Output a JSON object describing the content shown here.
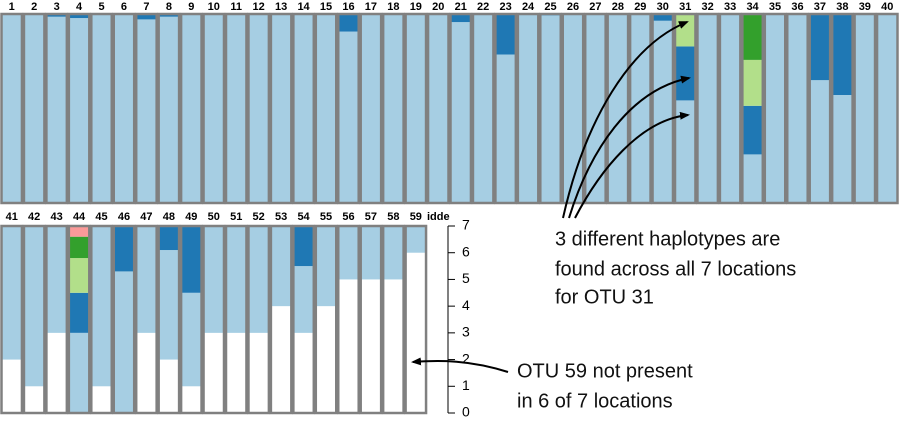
{
  "chart_data": {
    "type": "stacked-panels",
    "categories": [
      "1",
      "2",
      "3",
      "4",
      "5",
      "6",
      "7",
      "8",
      "9",
      "10",
      "11",
      "12",
      "13",
      "14",
      "15",
      "16",
      "17",
      "18",
      "19",
      "20",
      "21",
      "22",
      "23",
      "24",
      "25",
      "26",
      "27",
      "28",
      "29",
      "30",
      "31",
      "32",
      "33",
      "34",
      "35",
      "36",
      "37",
      "38",
      "39",
      "40",
      "41",
      "42",
      "43",
      "44",
      "45",
      "46",
      "47",
      "48",
      "49",
      "50",
      "51",
      "52",
      "53",
      "54",
      "55",
      "56",
      "57",
      "58",
      "59",
      "idde"
    ],
    "series": [
      {
        "color": "#ffffff",
        "values": [
          0,
          0,
          0,
          0,
          0,
          0,
          0,
          0,
          0,
          0,
          0,
          0,
          0,
          0,
          0,
          0,
          0,
          0,
          0,
          0,
          0,
          0,
          0,
          0,
          0,
          0,
          0,
          0,
          0,
          0,
          0,
          0,
          0,
          0,
          0,
          0,
          0,
          0,
          0,
          0,
          2,
          1,
          3,
          0,
          1,
          0,
          3,
          2,
          1,
          3,
          3,
          3,
          4,
          3,
          4,
          5,
          5,
          5,
          6,
          null
        ]
      },
      {
        "color": "#a6cee3",
        "values": [
          7,
          7,
          6.9,
          6.85,
          7,
          7,
          6.8,
          6.9,
          7,
          7,
          7,
          7,
          7,
          7,
          7,
          6.35,
          7,
          7,
          7,
          7,
          6.7,
          7,
          5.5,
          7,
          6.95,
          7,
          7,
          7,
          7,
          6.75,
          3.8,
          7,
          7,
          1.8,
          7,
          7,
          4.55,
          4,
          7,
          7,
          5,
          6,
          4,
          3,
          6,
          5.3,
          4,
          4.1,
          3.5,
          4,
          4,
          4,
          3,
          2.5,
          3,
          2,
          2,
          2,
          1,
          null
        ]
      },
      {
        "color": "#1f78b4",
        "values": [
          0,
          0,
          0.1,
          0.15,
          0,
          0,
          0.2,
          0.1,
          0,
          0,
          0,
          0,
          0,
          0,
          0,
          0.65,
          0,
          0,
          0,
          0,
          0.3,
          0,
          1.5,
          0,
          0.05,
          0,
          0,
          0,
          0,
          0.25,
          2.0,
          0,
          0,
          1.8,
          0,
          0,
          2.45,
          3,
          0,
          0,
          0,
          0,
          0,
          1.5,
          0,
          1.7,
          0,
          0.9,
          2.5,
          0,
          0,
          0,
          0,
          1.5,
          0,
          0,
          0,
          0,
          0,
          null
        ]
      },
      {
        "color": "#b2df8a",
        "values": [
          0,
          0,
          0,
          0,
          0,
          0,
          0,
          0,
          0,
          0,
          0,
          0,
          0,
          0,
          0,
          0,
          0,
          0,
          0,
          0,
          0,
          0,
          0,
          0,
          0,
          0,
          0,
          0,
          0,
          0,
          1.2,
          0,
          0,
          1.7,
          0,
          0,
          0,
          0,
          0,
          0,
          0,
          0,
          0,
          1.3,
          0,
          0,
          0,
          0,
          0,
          0,
          0,
          0,
          0,
          0,
          0,
          0,
          0,
          0,
          0,
          null
        ]
      },
      {
        "color": "#33a02c",
        "values": [
          0,
          0,
          0,
          0,
          0,
          0,
          0,
          0,
          0,
          0,
          0,
          0,
          0,
          0,
          0,
          0,
          0,
          0,
          0,
          0,
          0,
          0,
          0,
          0,
          0,
          0,
          0,
          0,
          0,
          0,
          0,
          0,
          0,
          1.7,
          0,
          0,
          0,
          0,
          0,
          0,
          0,
          0,
          0,
          0.8,
          0,
          0,
          0,
          0,
          0,
          0,
          0,
          0,
          0,
          0,
          0,
          0,
          0,
          0,
          0,
          null
        ]
      },
      {
        "color": "#fb9a99",
        "values": [
          0,
          0,
          0,
          0,
          0,
          0,
          0,
          0,
          0,
          0,
          0,
          0,
          0,
          0,
          0,
          0,
          0,
          0,
          0,
          0,
          0,
          0,
          0,
          0,
          0,
          0,
          0,
          0,
          0,
          0,
          0,
          0,
          0,
          0,
          0,
          0,
          0,
          0,
          0,
          0,
          0,
          0,
          0,
          0.4,
          0,
          0,
          0,
          0,
          0,
          0,
          0,
          0,
          0,
          0,
          0,
          0,
          0,
          0,
          0,
          null
        ]
      }
    ],
    "ylim": [
      0,
      7
    ],
    "yticks": [
      0,
      1,
      2,
      3,
      4,
      5,
      6,
      7
    ],
    "annotations": [
      [
        "3 different haplotypes are",
        "found across all 7 locations",
        "for OTU  31"
      ],
      [
        "OTU 59 not present",
        "in 6 of 7 locations"
      ]
    ]
  }
}
